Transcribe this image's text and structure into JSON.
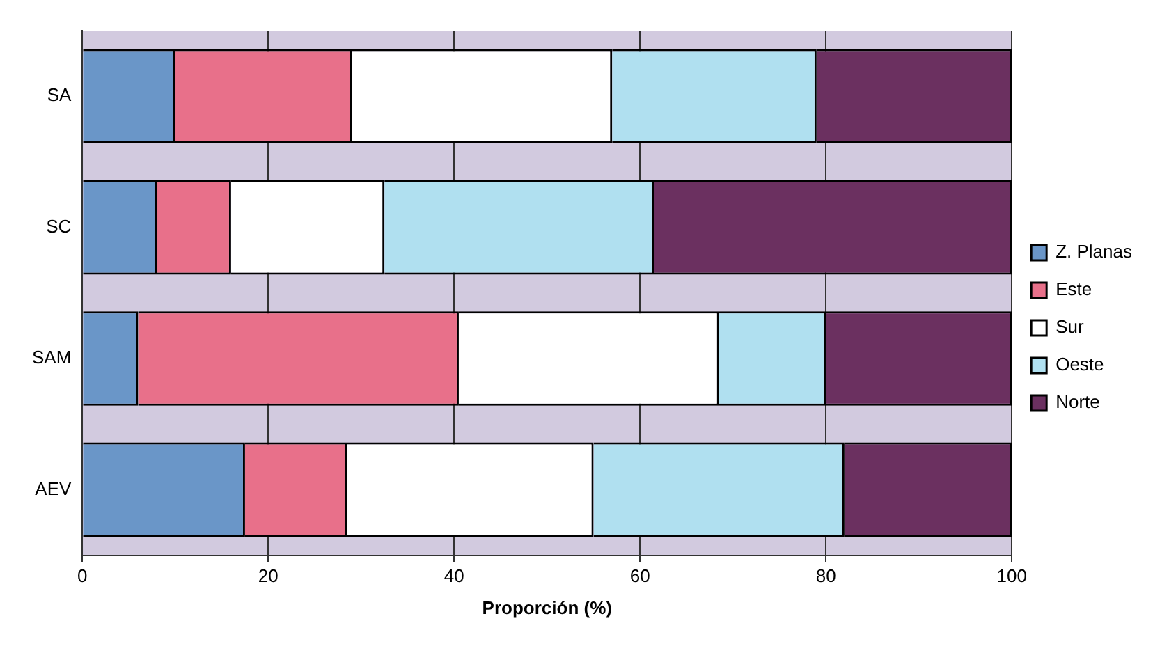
{
  "chart_data": {
    "type": "bar",
    "orientation": "horizontal",
    "stacked": true,
    "xlabel": "Proporción (%)",
    "categories": [
      "SA",
      "SC",
      "SAM",
      "AEV"
    ],
    "series": [
      {
        "name": "Z. Planas",
        "color": "#6a96c8",
        "values": [
          10,
          8,
          6,
          17.5
        ]
      },
      {
        "name": "Este",
        "color": "#e8708a",
        "values": [
          19,
          8,
          34.5,
          11
        ]
      },
      {
        "name": "Sur",
        "color": "#ffffff",
        "values": [
          28,
          16.5,
          28,
          26.5
        ]
      },
      {
        "name": "Oeste",
        "color": "#b0e0f0",
        "values": [
          22,
          29,
          11.5,
          27
        ]
      },
      {
        "name": "Norte",
        "color": "#6b3060",
        "values": [
          21,
          38.5,
          20,
          18
        ]
      }
    ],
    "xlim": [
      0,
      100
    ],
    "xticks": [
      0,
      20,
      40,
      60,
      80,
      100
    ],
    "grid": "x",
    "legend": "right"
  }
}
